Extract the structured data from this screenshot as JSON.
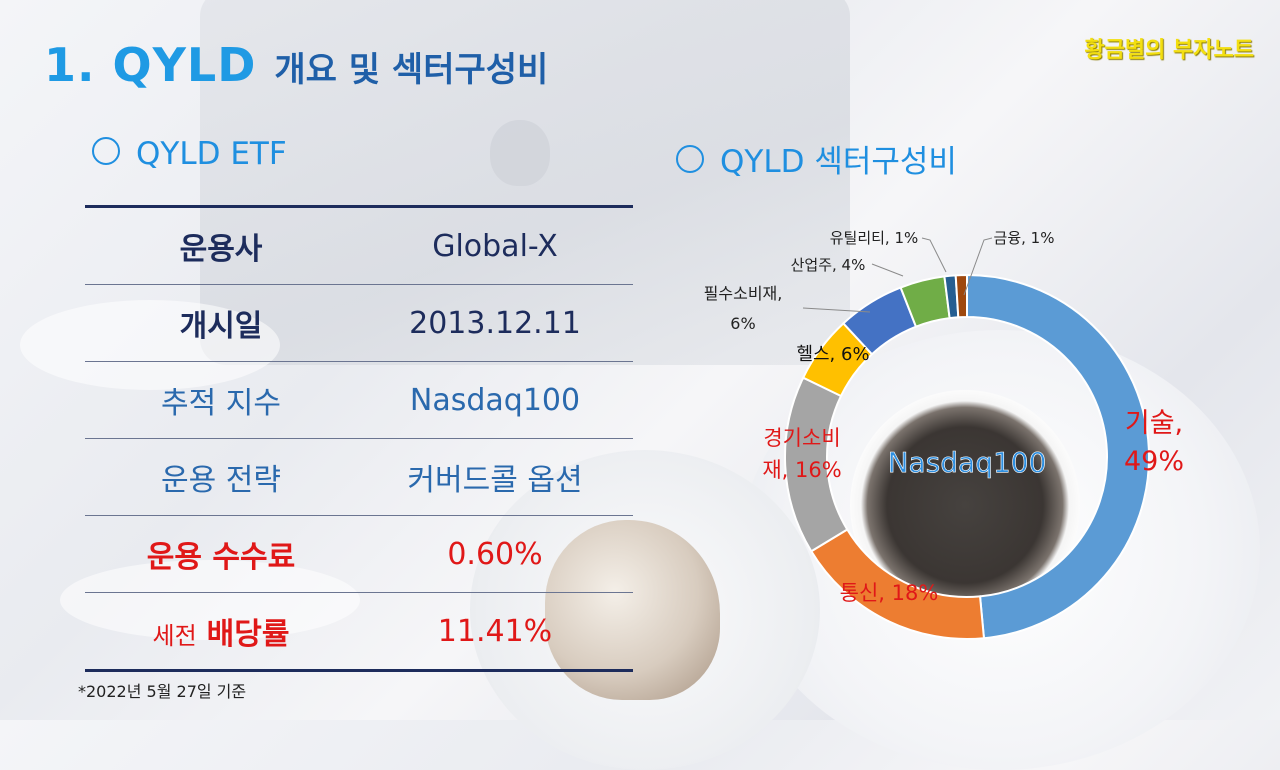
{
  "title": {
    "main": "1. QYLD",
    "sub": "개요 및 섹터구성비"
  },
  "watermark": "황금별의 부자노트",
  "left_section": {
    "heading": "QYLD ETF",
    "rows": [
      {
        "label": "운용사",
        "value": "Global-X"
      },
      {
        "label": "개시일",
        "value": "2013.12.11"
      },
      {
        "label": "추적 지수",
        "value": "Nasdaq100"
      },
      {
        "label": "운용 전략",
        "value": "커버드콜 옵션"
      },
      {
        "label": "운용 수수료",
        "value": "0.60%"
      },
      {
        "label_prefix": "세전",
        "label": "배당률",
        "value": "11.41%"
      }
    ],
    "footnote": "*2022년 5월 27일 기준"
  },
  "right_section": {
    "heading": "QYLD 섹터구성비"
  },
  "colors": {
    "title": "#1f9ae4",
    "subtitle": "#1f5fa8",
    "navy": "#1d2c5c",
    "blue": "#2a69ad",
    "red": "#e01818",
    "watermark": "#f3df10"
  },
  "chart_data": {
    "type": "pie",
    "subtype": "donut",
    "center_label": "Nasdaq100",
    "slices": [
      {
        "label": "기술",
        "value": 49,
        "color": "#5b9bd5"
      },
      {
        "label": "통신",
        "value": 18,
        "color": "#ed7d31"
      },
      {
        "label": "경기소비재",
        "value": 16,
        "color": "#a5a5a5"
      },
      {
        "label": "헬스",
        "value": 6,
        "color": "#ffc000"
      },
      {
        "label": "필수소비재",
        "value": 6,
        "color": "#4472c4"
      },
      {
        "label": "산업주",
        "value": 4,
        "color": "#70ad47"
      },
      {
        "label": "유틸리티",
        "value": 1,
        "color": "#255e91"
      },
      {
        "label": "금융",
        "value": 1,
        "color": "#9e480e"
      }
    ],
    "labels_display": [
      {
        "lines": [
          "기술,",
          "49%"
        ]
      },
      {
        "lines": [
          "통신, 18%"
        ]
      },
      {
        "lines": [
          "경기소비",
          "재, 16%"
        ]
      },
      {
        "lines": [
          "헬스, 6%"
        ]
      },
      {
        "lines": [
          "필수소비재,",
          "6%"
        ]
      },
      {
        "lines": [
          "산업주, 4%"
        ]
      },
      {
        "lines": [
          "유틸리티, 1%"
        ]
      },
      {
        "lines": [
          "금융, 1%"
        ]
      }
    ]
  }
}
